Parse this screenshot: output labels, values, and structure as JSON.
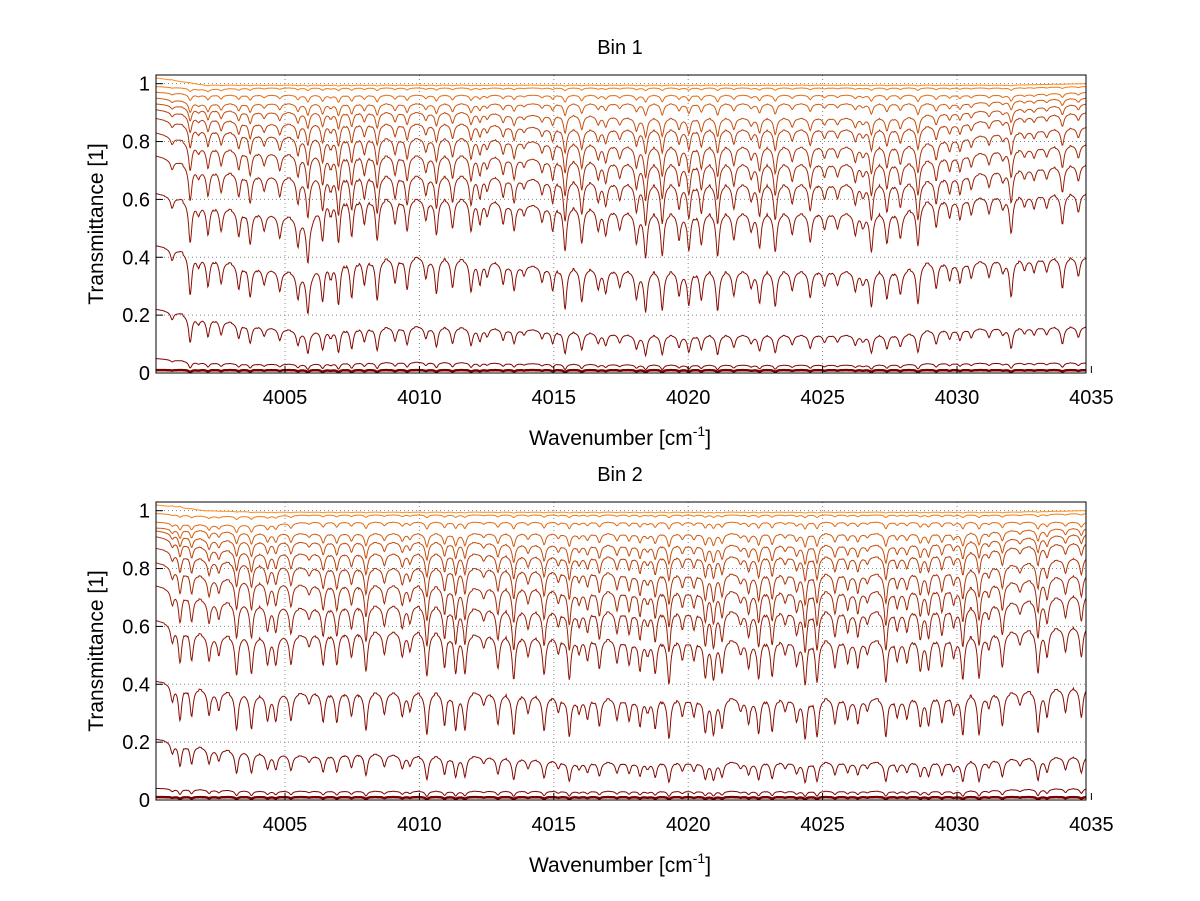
{
  "chart_data": [
    {
      "type": "line",
      "title": "Bin 1",
      "xlabel": "Wavenumber [cm",
      "xlabel_sup": "-1",
      "xlabel_suffix": "]",
      "ylabel": "Transmittance [1]",
      "xlim": [
        4000.2,
        4034.8
      ],
      "ylim": [
        0,
        1.03
      ],
      "xticks": [
        4005,
        4010,
        4015,
        4020,
        4025,
        4030,
        4035
      ],
      "yticks": [
        0,
        0.2,
        0.4,
        0.6,
        0.8,
        1
      ],
      "grid": true,
      "x": [
        4000.2,
        4002,
        4004,
        4006,
        4006.5,
        4008,
        4010,
        4012,
        4014,
        4016,
        4018,
        4020,
        4022,
        4024,
        4026,
        4028,
        4028.8,
        4030,
        4032,
        4034.8
      ],
      "series": [
        {
          "values": [
            0.01,
            0.01,
            0.01,
            0.01,
            0.01,
            0.01,
            0.01,
            0.01,
            0.01,
            0.01,
            0.01,
            0.01,
            0.01,
            0.01,
            0.01,
            0.01,
            0.01,
            0.01,
            0.01,
            0.01
          ]
        },
        {
          "values": [
            0.05,
            0.035,
            0.03,
            0.03,
            0.033,
            0.035,
            0.037,
            0.035,
            0.032,
            0.03,
            0.028,
            0.027,
            0.027,
            0.027,
            0.027,
            0.028,
            0.032,
            0.033,
            0.034,
            0.035
          ]
        },
        {
          "values": [
            0.22,
            0.19,
            0.16,
            0.14,
            0.15,
            0.155,
            0.16,
            0.155,
            0.15,
            0.14,
            0.13,
            0.13,
            0.13,
            0.13,
            0.13,
            0.13,
            0.145,
            0.15,
            0.155,
            0.16
          ]
        },
        {
          "values": [
            0.44,
            0.4,
            0.36,
            0.34,
            0.38,
            0.39,
            0.4,
            0.39,
            0.37,
            0.36,
            0.35,
            0.35,
            0.35,
            0.35,
            0.35,
            0.35,
            0.38,
            0.38,
            0.39,
            0.4
          ]
        },
        {
          "values": [
            0.62,
            0.58,
            0.55,
            0.53,
            0.6,
            0.6,
            0.6,
            0.6,
            0.58,
            0.57,
            0.55,
            0.55,
            0.55,
            0.55,
            0.55,
            0.55,
            0.59,
            0.6,
            0.61,
            0.62
          ]
        },
        {
          "values": [
            0.75,
            0.7,
            0.68,
            0.67,
            0.68,
            0.68,
            0.68,
            0.68,
            0.67,
            0.66,
            0.65,
            0.65,
            0.65,
            0.65,
            0.65,
            0.65,
            0.66,
            0.68,
            0.7,
            0.72
          ]
        },
        {
          "values": [
            0.83,
            0.78,
            0.76,
            0.75,
            0.75,
            0.75,
            0.75,
            0.75,
            0.74,
            0.73,
            0.72,
            0.72,
            0.72,
            0.72,
            0.72,
            0.72,
            0.73,
            0.75,
            0.77,
            0.79
          ]
        },
        {
          "values": [
            0.88,
            0.84,
            0.82,
            0.81,
            0.81,
            0.81,
            0.81,
            0.81,
            0.8,
            0.79,
            0.78,
            0.78,
            0.78,
            0.78,
            0.78,
            0.78,
            0.79,
            0.81,
            0.83,
            0.85
          ]
        },
        {
          "values": [
            0.91,
            0.88,
            0.86,
            0.86,
            0.86,
            0.86,
            0.86,
            0.86,
            0.85,
            0.84,
            0.84,
            0.84,
            0.84,
            0.84,
            0.84,
            0.84,
            0.85,
            0.86,
            0.88,
            0.9
          ]
        },
        {
          "values": [
            0.93,
            0.91,
            0.9,
            0.9,
            0.9,
            0.9,
            0.9,
            0.9,
            0.89,
            0.89,
            0.88,
            0.88,
            0.88,
            0.88,
            0.88,
            0.88,
            0.89,
            0.9,
            0.91,
            0.93
          ]
        },
        {
          "values": [
            0.95,
            0.93,
            0.93,
            0.93,
            0.93,
            0.93,
            0.93,
            0.93,
            0.93,
            0.93,
            0.93,
            0.93,
            0.93,
            0.93,
            0.93,
            0.93,
            0.93,
            0.93,
            0.94,
            0.95
          ]
        },
        {
          "values": [
            0.97,
            0.96,
            0.96,
            0.96,
            0.96,
            0.96,
            0.96,
            0.96,
            0.96,
            0.96,
            0.96,
            0.96,
            0.96,
            0.96,
            0.96,
            0.96,
            0.96,
            0.96,
            0.96,
            0.97
          ]
        },
        {
          "values": [
            0.99,
            0.98,
            0.985,
            0.985,
            0.985,
            0.985,
            0.985,
            0.985,
            0.985,
            0.985,
            0.985,
            0.985,
            0.985,
            0.985,
            0.985,
            0.985,
            0.985,
            0.985,
            0.985,
            0.99
          ]
        },
        {
          "values": [
            1.02,
            0.995,
            0.995,
            0.995,
            0.995,
            0.995,
            0.995,
            0.995,
            0.995,
            0.995,
            0.995,
            0.995,
            0.995,
            0.995,
            0.995,
            0.995,
            0.995,
            0.995,
            0.995,
            1.0
          ]
        }
      ]
    },
    {
      "type": "line",
      "title": "Bin 2",
      "xlabel": "Wavenumber [cm",
      "xlabel_sup": "-1",
      "xlabel_suffix": "]",
      "ylabel": "Transmittance [1]",
      "xlim": [
        4000.2,
        4034.8
      ],
      "ylim": [
        0,
        1.03
      ],
      "xticks": [
        4005,
        4010,
        4015,
        4020,
        4025,
        4030,
        4035
      ],
      "yticks": [
        0,
        0.2,
        0.4,
        0.6,
        0.8,
        1
      ],
      "grid": true,
      "x": [
        4000.2,
        4002,
        4004,
        4006,
        4008,
        4010,
        4012,
        4014,
        4016,
        4018,
        4020,
        4022,
        4024,
        4026,
        4028,
        4030,
        4032,
        4034.8
      ],
      "series": [
        {
          "values": [
            0.01,
            0.01,
            0.01,
            0.01,
            0.01,
            0.01,
            0.01,
            0.01,
            0.01,
            0.01,
            0.01,
            0.01,
            0.01,
            0.01,
            0.01,
            0.01,
            0.01,
            0.01
          ]
        },
        {
          "values": [
            0.04,
            0.035,
            0.03,
            0.03,
            0.03,
            0.03,
            0.03,
            0.03,
            0.03,
            0.03,
            0.03,
            0.03,
            0.03,
            0.03,
            0.03,
            0.03,
            0.035,
            0.04
          ]
        },
        {
          "values": [
            0.21,
            0.18,
            0.16,
            0.15,
            0.16,
            0.15,
            0.15,
            0.14,
            0.13,
            0.13,
            0.13,
            0.13,
            0.13,
            0.13,
            0.13,
            0.13,
            0.14,
            0.15
          ]
        },
        {
          "values": [
            0.41,
            0.38,
            0.36,
            0.37,
            0.37,
            0.37,
            0.37,
            0.36,
            0.35,
            0.35,
            0.35,
            0.35,
            0.35,
            0.35,
            0.35,
            0.36,
            0.37,
            0.39
          ]
        },
        {
          "values": [
            0.62,
            0.57,
            0.56,
            0.57,
            0.58,
            0.58,
            0.57,
            0.56,
            0.56,
            0.55,
            0.55,
            0.55,
            0.55,
            0.55,
            0.55,
            0.56,
            0.58,
            0.6
          ]
        },
        {
          "values": [
            0.74,
            0.69,
            0.67,
            0.66,
            0.67,
            0.67,
            0.66,
            0.65,
            0.65,
            0.65,
            0.65,
            0.65,
            0.65,
            0.65,
            0.65,
            0.66,
            0.68,
            0.71
          ]
        },
        {
          "values": [
            0.82,
            0.77,
            0.75,
            0.74,
            0.74,
            0.74,
            0.73,
            0.73,
            0.72,
            0.72,
            0.72,
            0.72,
            0.72,
            0.72,
            0.72,
            0.73,
            0.75,
            0.78
          ]
        },
        {
          "values": [
            0.87,
            0.83,
            0.81,
            0.8,
            0.8,
            0.8,
            0.8,
            0.79,
            0.79,
            0.78,
            0.78,
            0.78,
            0.78,
            0.78,
            0.78,
            0.79,
            0.81,
            0.84
          ]
        },
        {
          "values": [
            0.91,
            0.87,
            0.85,
            0.85,
            0.85,
            0.85,
            0.85,
            0.84,
            0.84,
            0.84,
            0.84,
            0.84,
            0.84,
            0.84,
            0.84,
            0.85,
            0.87,
            0.89
          ]
        },
        {
          "values": [
            0.93,
            0.9,
            0.89,
            0.89,
            0.89,
            0.89,
            0.89,
            0.88,
            0.88,
            0.88,
            0.88,
            0.88,
            0.88,
            0.88,
            0.88,
            0.89,
            0.9,
            0.92
          ]
        },
        {
          "values": [
            0.94,
            0.93,
            0.92,
            0.92,
            0.92,
            0.92,
            0.92,
            0.92,
            0.92,
            0.92,
            0.92,
            0.92,
            0.92,
            0.92,
            0.92,
            0.92,
            0.93,
            0.94
          ]
        },
        {
          "values": [
            0.96,
            0.95,
            0.95,
            0.96,
            0.96,
            0.96,
            0.96,
            0.96,
            0.96,
            0.96,
            0.96,
            0.96,
            0.96,
            0.96,
            0.96,
            0.96,
            0.96,
            0.96
          ]
        },
        {
          "values": [
            0.99,
            0.98,
            0.98,
            0.985,
            0.985,
            0.985,
            0.985,
            0.985,
            0.985,
            0.985,
            0.985,
            0.985,
            0.985,
            0.985,
            0.985,
            0.985,
            0.985,
            0.99
          ]
        },
        {
          "values": [
            1.02,
            1.0,
            0.995,
            0.995,
            0.995,
            0.995,
            0.995,
            0.995,
            0.995,
            0.995,
            0.995,
            0.995,
            0.995,
            0.995,
            0.995,
            0.995,
            0.995,
            1.0
          ]
        }
      ]
    }
  ],
  "colors": {
    "series_dark": "#7a0000",
    "series_light": "#ff8c1a",
    "grid": "#888888",
    "axis": "#000000"
  }
}
